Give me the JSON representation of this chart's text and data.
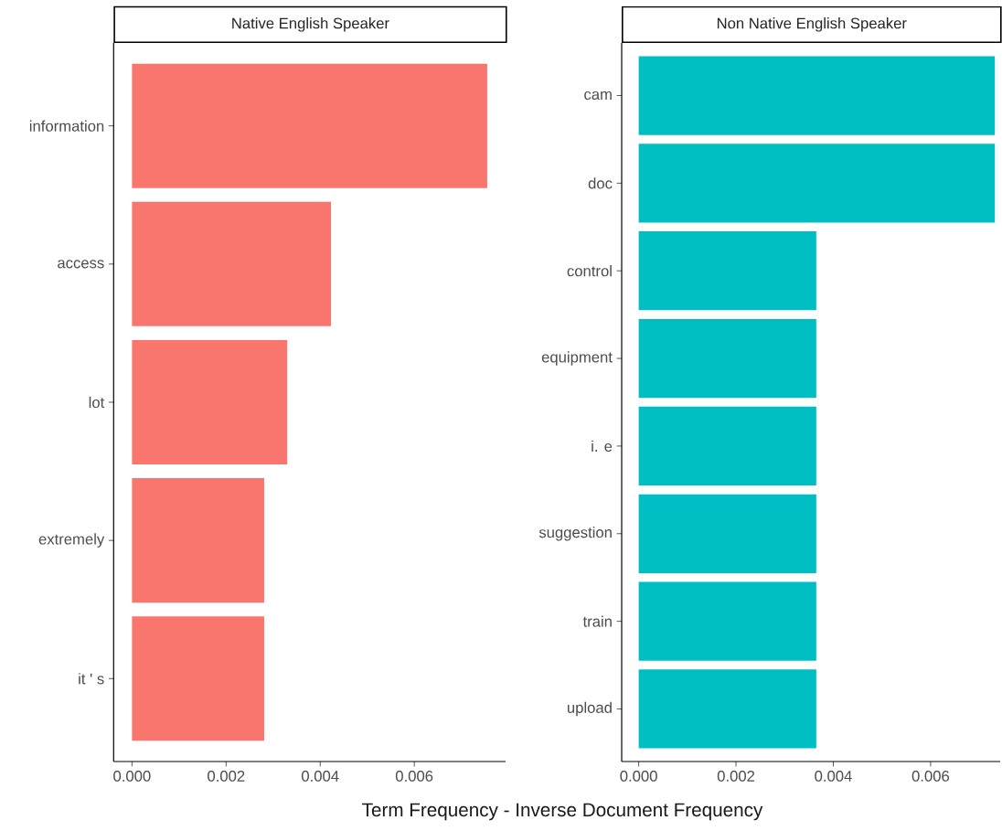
{
  "chart_data": [
    {
      "type": "bar",
      "orientation": "horizontal",
      "title": "Native English Speaker",
      "xlabel": "Term Frequency - Inverse Document Frequency",
      "categories": [
        "information",
        "access",
        "lot",
        "extremely",
        "it ' s"
      ],
      "values": [
        0.00755,
        0.00423,
        0.0033,
        0.00281,
        0.00281
      ],
      "color": "#f8766d",
      "xlim": [
        -0.00039,
        0.00794
      ],
      "xticks": [
        {
          "value": 0,
          "label": "0.000"
        },
        {
          "value": 0.002,
          "label": "0.002"
        },
        {
          "value": 0.004,
          "label": "0.004"
        },
        {
          "value": 0.006,
          "label": "0.006"
        }
      ]
    },
    {
      "type": "bar",
      "orientation": "horizontal",
      "title": "Non Native English Speaker",
      "categories": [
        "cam",
        "doc",
        "control",
        "equipment",
        "i. e",
        "suggestion",
        "train",
        "upload"
      ],
      "values": [
        0.00732,
        0.00732,
        0.00365,
        0.00365,
        0.00365,
        0.00365,
        0.00365,
        0.00365
      ],
      "color": "#00bfc4",
      "xlim": [
        -0.00035,
        0.00743
      ],
      "xticks": [
        {
          "value": 0,
          "label": "0.000"
        },
        {
          "value": 0.002,
          "label": "0.002"
        },
        {
          "value": 0.004,
          "label": "0.004"
        },
        {
          "value": 0.006,
          "label": "0.006"
        }
      ]
    }
  ]
}
